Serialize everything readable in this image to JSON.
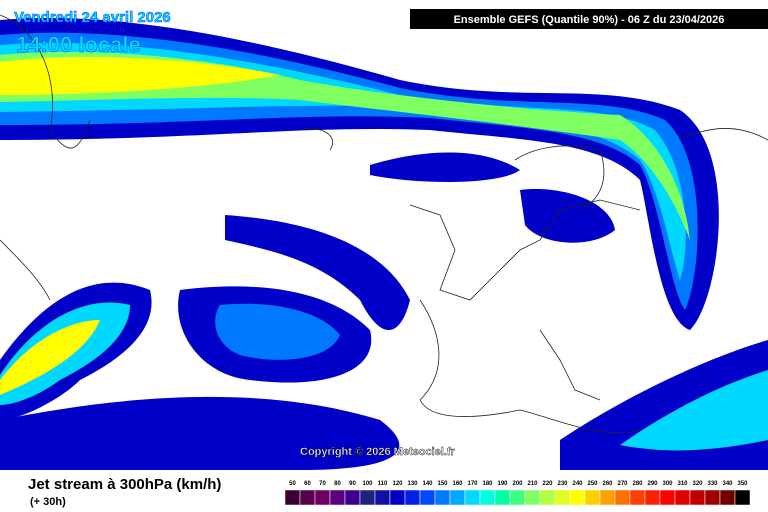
{
  "header": {
    "date": "Vendredi 24 avril 2026",
    "time": "14:00 locale",
    "model": "Ensemble GEFS  (Quantile 90%) - 06 Z du 23/04/2026"
  },
  "copyright": "Copyright © 2026 Meteociel.fr",
  "footer": {
    "title": "Jet stream à 300hPa (km/h)",
    "lead": "(+ 30h)"
  },
  "scale": [
    {
      "value": 50,
      "color": "#3a0030"
    },
    {
      "value": 60,
      "color": "#55004a"
    },
    {
      "value": 70,
      "color": "#6c0064"
    },
    {
      "value": 80,
      "color": "#5c007c"
    },
    {
      "value": 90,
      "color": "#3c0090"
    },
    {
      "value": 100,
      "color": "#202080"
    },
    {
      "value": 110,
      "color": "#1010a8"
    },
    {
      "value": 120,
      "color": "#0000c8"
    },
    {
      "value": 130,
      "color": "#0020e8"
    },
    {
      "value": 140,
      "color": "#0048ff"
    },
    {
      "value": 150,
      "color": "#0078ff"
    },
    {
      "value": 160,
      "color": "#00a8ff"
    },
    {
      "value": 170,
      "color": "#00d8ff"
    },
    {
      "value": 180,
      "color": "#00ffe0"
    },
    {
      "value": 190,
      "color": "#00ffa0"
    },
    {
      "value": 200,
      "color": "#40ff80"
    },
    {
      "value": 210,
      "color": "#80ff60"
    },
    {
      "value": 220,
      "color": "#b0ff40"
    },
    {
      "value": 230,
      "color": "#e0ff20"
    },
    {
      "value": 240,
      "color": "#ffff00"
    },
    {
      "value": 250,
      "color": "#ffd000"
    },
    {
      "value": 260,
      "color": "#ffa000"
    },
    {
      "value": 270,
      "color": "#ff7000"
    },
    {
      "value": 280,
      "color": "#ff4000"
    },
    {
      "value": 290,
      "color": "#ff2000"
    },
    {
      "value": 300,
      "color": "#ff0000"
    },
    {
      "value": 310,
      "color": "#e00000"
    },
    {
      "value": 320,
      "color": "#c00000"
    },
    {
      "value": 330,
      "color": "#a00000"
    },
    {
      "value": 340,
      "color": "#700000"
    },
    {
      "value": 350,
      "color": "#000000"
    }
  ]
}
